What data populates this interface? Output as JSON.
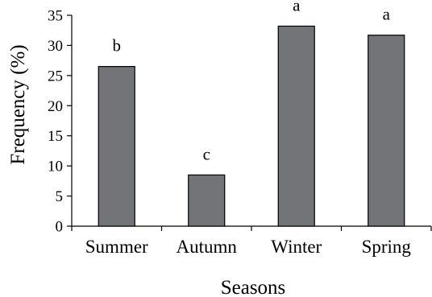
{
  "chart_data": {
    "type": "bar",
    "title": "",
    "xlabel": "Seasons",
    "ylabel": "Frequency (%)",
    "categories": [
      "Summer",
      "Autumn",
      "Winter",
      "Spring"
    ],
    "values": [
      26.5,
      8.5,
      33.2,
      31.7
    ],
    "data_labels": [
      "b",
      "c",
      "a",
      "a"
    ],
    "ylim": [
      0,
      35
    ],
    "yticks": [
      0,
      5,
      10,
      15,
      20,
      25,
      30,
      35
    ],
    "ytick_labels": [
      "0",
      "5",
      "10",
      "15",
      "20",
      "25",
      "30",
      "35"
    ],
    "grid": false,
    "legend": "none",
    "colors": {
      "bar_fill": "#727477",
      "bar_stroke": "#000000",
      "axis": "#000000",
      "text": "#000000"
    }
  }
}
